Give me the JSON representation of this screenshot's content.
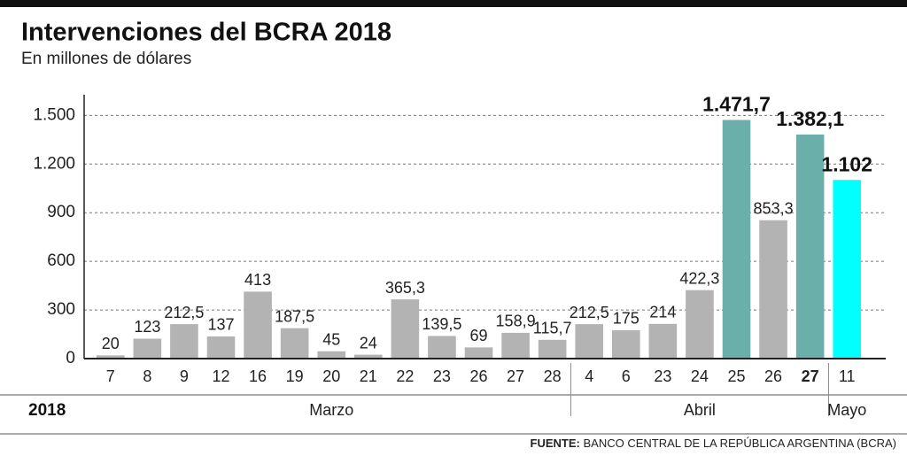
{
  "chart_data": {
    "type": "bar",
    "title": "Intervenciones del BCRA 2018",
    "subtitle": "En millones de dólares",
    "year_label": "2018",
    "categories": [
      "7",
      "8",
      "9",
      "12",
      "16",
      "19",
      "20",
      "21",
      "22",
      "23",
      "26",
      "27",
      "28",
      "4",
      "6",
      "23",
      "24",
      "25",
      "26",
      "27",
      "11"
    ],
    "category_groups": [
      "Marzo",
      "Marzo",
      "Marzo",
      "Marzo",
      "Marzo",
      "Marzo",
      "Marzo",
      "Marzo",
      "Marzo",
      "Marzo",
      "Marzo",
      "Marzo",
      "Marzo",
      "Abril",
      "Abril",
      "Abril",
      "Abril",
      "Abril",
      "Abril",
      "Abril",
      "Mayo"
    ],
    "values": [
      20,
      123,
      212.5,
      137,
      413,
      187.5,
      45,
      24,
      365.3,
      139.5,
      69,
      158.9,
      115.7,
      212.5,
      175,
      214,
      422.3,
      1471.7,
      853.3,
      1382.1,
      1102
    ],
    "value_labels": [
      "20",
      "123",
      "212,5",
      "137",
      "413",
      "187,5",
      "45",
      "24",
      "365,3",
      "139,5",
      "69",
      "158,9",
      "115,7",
      "212,5",
      "175",
      "214",
      "422,3",
      "1.471,7",
      "853,3",
      "1.382,1",
      "1.102"
    ],
    "colors": [
      "#b3b3b3",
      "#b3b3b3",
      "#b3b3b3",
      "#b3b3b3",
      "#b3b3b3",
      "#b3b3b3",
      "#b3b3b3",
      "#b3b3b3",
      "#b3b3b3",
      "#b3b3b3",
      "#b3b3b3",
      "#b3b3b3",
      "#b3b3b3",
      "#b3b3b3",
      "#b3b3b3",
      "#b3b3b3",
      "#b3b3b3",
      "#6aafaa",
      "#b3b3b3",
      "#6aafaa",
      "#00ffff"
    ],
    "ylim": [
      0,
      1600
    ],
    "yticks": [
      0,
      300,
      600,
      900,
      {
        "value": 1200,
        "label": "1.200"
      },
      {
        "value": 1500,
        "label": "1.500"
      }
    ],
    "grid": true,
    "source_label": "FUENTE:",
    "source": "BANCO CENTRAL DE LA REPÚBLICA ARGENTINA (BCRA)"
  }
}
